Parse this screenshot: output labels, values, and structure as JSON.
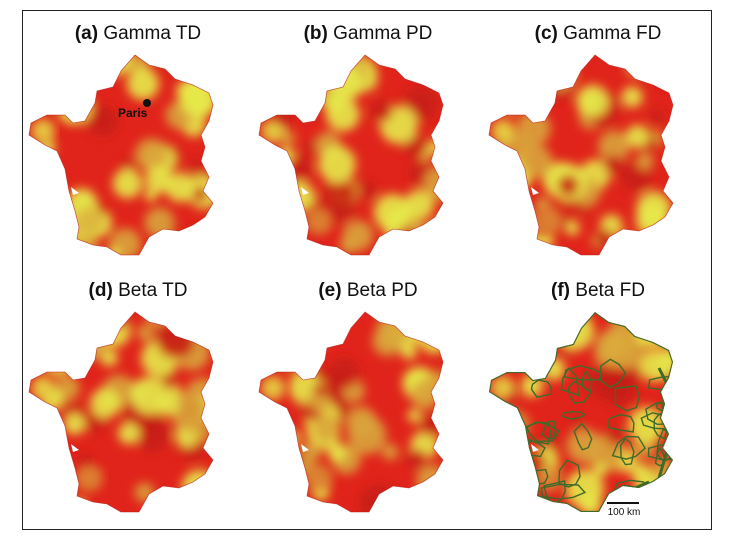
{
  "panels": [
    {
      "id": "a",
      "letter": "(a)",
      "label": "Gamma TD",
      "seed": 3,
      "warm": 0.55
    },
    {
      "id": "b",
      "letter": "(b)",
      "label": "Gamma PD",
      "seed": 7,
      "warm": 0.5
    },
    {
      "id": "c",
      "letter": "(c)",
      "label": "Gamma FD",
      "seed": 11,
      "warm": 0.6
    },
    {
      "id": "d",
      "letter": "(d)",
      "label": "Beta TD",
      "seed": 17,
      "warm": 0.65
    },
    {
      "id": "e",
      "letter": "(e)",
      "label": "Beta PD",
      "seed": 23,
      "warm": 0.65
    },
    {
      "id": "f",
      "letter": "(f)",
      "label": "Beta FD",
      "seed": 31,
      "warm": 0.6
    }
  ],
  "city_marker": {
    "label": "Paris",
    "panel": "a"
  },
  "protected_areas_overlay": {
    "panel": "f",
    "color": "#3f6b2a"
  },
  "scale_bar": {
    "label": "100 km"
  },
  "colors": {
    "low": "#e0241b",
    "mid": "#d9a43a",
    "high": "#e6ea4a",
    "outline": "#333333"
  }
}
